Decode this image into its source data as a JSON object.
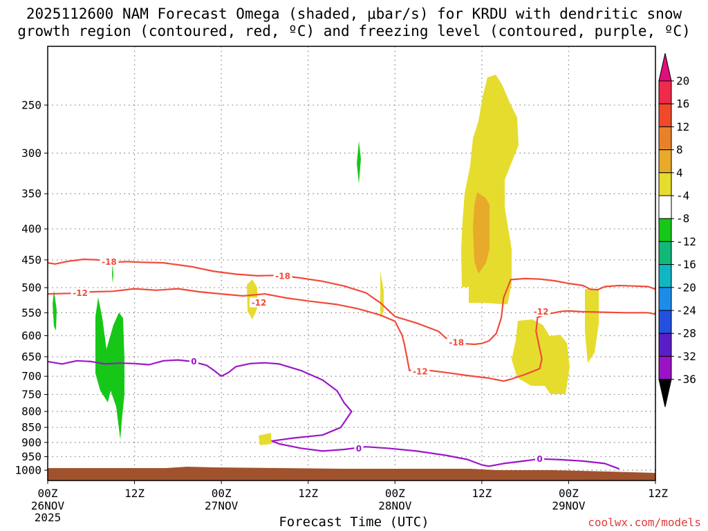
{
  "title_line1": "2025112600 NAM Forecast Omega (shaded, μbar/s) for KRDU with dendritic snow",
  "title_line2": "growth region (contoured, red, ºC) and freezing level (contoured, purple, ºC)",
  "credit": "coolwx.com/models",
  "chart_data": {
    "type": "heatmap",
    "xlabel": "Forecast Time (UTC)",
    "ylabel": "",
    "x_range_hours": [
      0,
      84
    ],
    "y_range_mb": [
      200,
      1040
    ],
    "y_scale": "log-pressure (inverted)",
    "grid": true,
    "y_ticks": [
      250,
      300,
      350,
      400,
      450,
      500,
      550,
      600,
      650,
      700,
      750,
      800,
      850,
      900,
      950,
      1000
    ],
    "x_ticks": [
      {
        "h": 0,
        "label": "00Z",
        "sub": "26NOV",
        "sub2": "2025"
      },
      {
        "h": 12,
        "label": "12Z",
        "sub": "",
        "sub2": ""
      },
      {
        "h": 24,
        "label": "00Z",
        "sub": "27NOV",
        "sub2": ""
      },
      {
        "h": 36,
        "label": "12Z",
        "sub": "",
        "sub2": ""
      },
      {
        "h": 48,
        "label": "00Z",
        "sub": "28NOV",
        "sub2": ""
      },
      {
        "h": 60,
        "label": "12Z",
        "sub": "",
        "sub2": ""
      },
      {
        "h": 72,
        "label": "00Z",
        "sub": "29NOV",
        "sub2": ""
      },
      {
        "h": 84,
        "label": "12Z",
        "sub": "",
        "sub2": ""
      }
    ],
    "colorbar": {
      "labels": [
        "20",
        "16",
        "12",
        "8",
        "4",
        "-4",
        "-8",
        "-12",
        "-16",
        "-20",
        "-24",
        "-28",
        "-32",
        "-36"
      ],
      "colors": [
        "#f02a4a",
        "#f04a2a",
        "#e8822a",
        "#e8aa2a",
        "#e6dc2e",
        "#ffffff",
        "#17c717",
        "#12b878",
        "#11b6c4",
        "#1c8ce8",
        "#2450e0",
        "#5a1ec8",
        "#9a12c4",
        "#a8a8a8"
      ],
      "top_arrow_color": "#e0107a",
      "bottom_arrow_color": "#000000"
    },
    "series": [
      {
        "kind": "contour",
        "value": "-18",
        "color": "#f24a3a",
        "points": [
          [
            0,
            455
          ],
          [
            1,
            457
          ],
          [
            3,
            452
          ],
          [
            5,
            449
          ],
          [
            7,
            450
          ],
          [
            9,
            454
          ],
          [
            11,
            453
          ],
          [
            13,
            454
          ],
          [
            16,
            455
          ],
          [
            20,
            462
          ],
          [
            23,
            470
          ],
          [
            26,
            475
          ],
          [
            29,
            478
          ],
          [
            32,
            477
          ],
          [
            35,
            482
          ],
          [
            38,
            488
          ],
          [
            41,
            497
          ],
          [
            44,
            510
          ],
          [
            46,
            530
          ],
          [
            48,
            558
          ],
          [
            51,
            572
          ],
          [
            54,
            590
          ],
          [
            55,
            605
          ],
          [
            57,
            618
          ],
          [
            59,
            620
          ],
          [
            60,
            618
          ],
          [
            61,
            612
          ],
          [
            62,
            595
          ],
          [
            62.7,
            560
          ],
          [
            63,
            520
          ],
          [
            64,
            485
          ],
          [
            66,
            483
          ],
          [
            68,
            484
          ],
          [
            70,
            487
          ],
          [
            72,
            492
          ],
          [
            74,
            496
          ],
          [
            75,
            503
          ],
          [
            76,
            504
          ],
          [
            77,
            498
          ],
          [
            79,
            496
          ],
          [
            81,
            497
          ],
          [
            83,
            498
          ],
          [
            84,
            503
          ]
        ],
        "labels": [
          [
            8.5,
            453
          ],
          [
            32.5,
            478
          ],
          [
            56.5,
            615
          ]
        ]
      },
      {
        "kind": "contour",
        "value": "-12",
        "color": "#f24a3a",
        "points": [
          [
            0,
            512
          ],
          [
            3,
            511
          ],
          [
            6,
            508
          ],
          [
            9,
            507
          ],
          [
            12,
            502
          ],
          [
            15,
            505
          ],
          [
            18,
            502
          ],
          [
            21,
            508
          ],
          [
            24,
            512
          ],
          [
            27,
            516
          ],
          [
            30,
            512
          ],
          [
            33,
            520
          ],
          [
            36,
            526
          ],
          [
            40,
            533
          ],
          [
            43,
            542
          ],
          [
            46,
            555
          ],
          [
            48,
            568
          ],
          [
            49,
            600
          ],
          [
            49.3,
            620
          ],
          [
            50,
            685
          ],
          [
            52,
            683
          ],
          [
            55,
            690
          ],
          [
            58,
            698
          ],
          [
            61,
            705
          ],
          [
            63,
            713
          ],
          [
            64,
            708
          ],
          [
            66,
            695
          ],
          [
            68,
            680
          ],
          [
            68.3,
            655
          ],
          [
            67.5,
            590
          ],
          [
            67.7,
            560
          ],
          [
            69,
            553
          ],
          [
            71,
            547
          ],
          [
            72,
            546
          ],
          [
            74,
            548
          ],
          [
            77,
            549
          ],
          [
            80,
            550
          ],
          [
            83,
            550
          ],
          [
            84,
            553
          ]
        ],
        "labels": [
          [
            4.5,
            510
          ],
          [
            29.2,
            529
          ],
          [
            51.5,
            687
          ],
          [
            68.2,
            547
          ]
        ]
      },
      {
        "kind": "contour",
        "value": "0",
        "color": "#9d15c8",
        "points": [
          [
            0,
            662
          ],
          [
            2,
            668
          ],
          [
            4,
            660
          ],
          [
            6,
            662
          ],
          [
            8,
            668
          ],
          [
            10,
            666
          ],
          [
            12,
            667
          ],
          [
            14,
            670
          ],
          [
            16,
            660
          ],
          [
            18,
            658
          ],
          [
            20,
            662
          ],
          [
            22,
            672
          ],
          [
            23,
            685
          ],
          [
            24,
            700
          ],
          [
            25,
            690
          ],
          [
            26,
            675
          ],
          [
            28,
            667
          ],
          [
            30,
            665
          ],
          [
            32,
            668
          ],
          [
            35,
            685
          ],
          [
            38,
            710
          ],
          [
            40,
            740
          ],
          [
            41,
            775
          ],
          [
            42,
            800
          ],
          [
            40.5,
            850
          ],
          [
            38,
            875
          ],
          [
            34,
            885
          ],
          [
            31,
            895
          ],
          [
            32,
            905
          ],
          [
            35,
            920
          ],
          [
            38,
            930
          ],
          [
            41,
            924
          ],
          [
            44,
            915
          ],
          [
            47,
            920
          ],
          [
            51,
            930
          ],
          [
            55,
            945
          ],
          [
            58,
            960
          ],
          [
            60,
            980
          ],
          [
            61,
            985
          ],
          [
            63,
            975
          ],
          [
            66,
            965
          ],
          [
            68,
            958
          ],
          [
            71,
            961
          ],
          [
            74,
            966
          ],
          [
            77,
            975
          ],
          [
            78,
            985
          ],
          [
            79,
            995
          ]
        ],
        "labels": [
          [
            20.2,
            661
          ],
          [
            43,
            921
          ],
          [
            68,
            958
          ]
        ]
      }
    ]
  }
}
